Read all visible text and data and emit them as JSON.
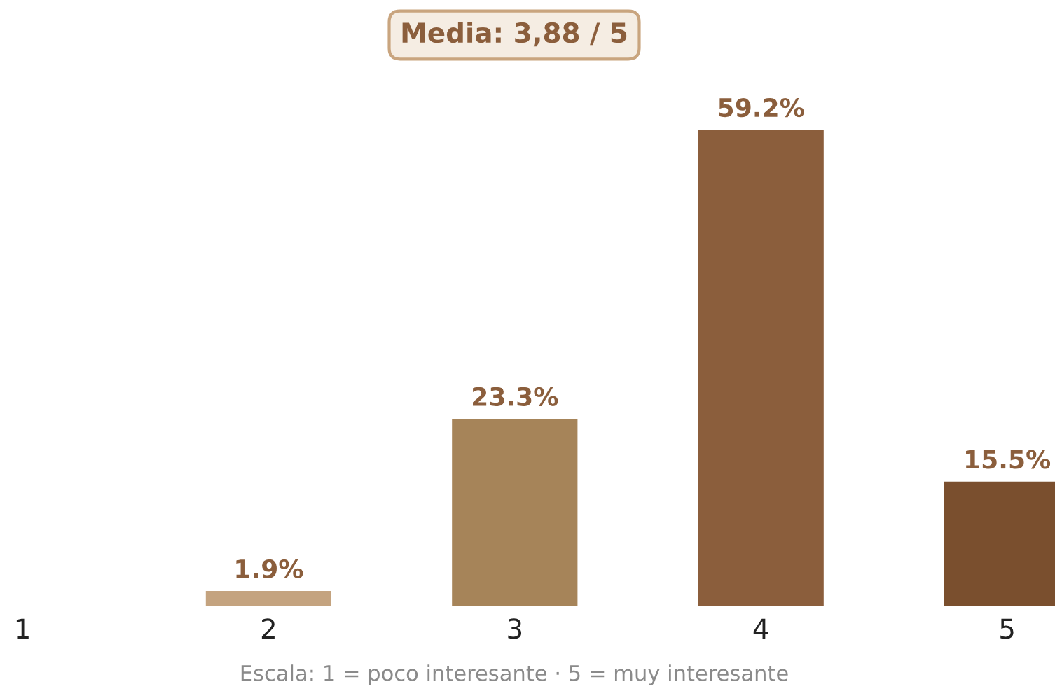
{
  "chart_data": {
    "type": "bar",
    "title": "Media: 3,88 / 5",
    "categories": [
      "1",
      "2",
      "3",
      "4",
      "5"
    ],
    "values": [
      0,
      1.9,
      23.3,
      59.2,
      15.5
    ],
    "colors": [
      "#d9c2a5",
      "#c4a37f",
      "#a68459",
      "#8b5e3c",
      "#7a4f2e"
    ],
    "value_labels": [
      null,
      "1.9%",
      "23.3%",
      "59.2%",
      "15.5%"
    ],
    "annotations": [
      "Escala: 1 = poco interesante · 5 = muy interesante"
    ],
    "grid": false,
    "legend": false
  }
}
